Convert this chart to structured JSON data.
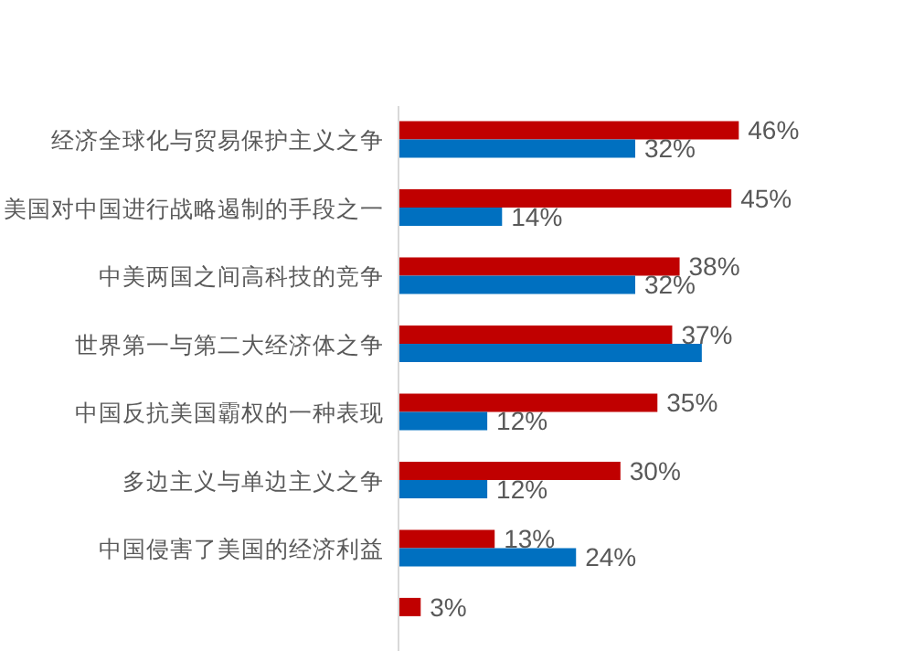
{
  "chart_data": {
    "type": "bar",
    "orientation": "horizontal",
    "categories": [
      "经济全球化与贸易保护主义之争",
      "美国对中国进行战略遏制的手段之一",
      "中美两国之间高科技的竞争",
      "世界第一与第二大经济体之争",
      "中国反抗美国霸权的一种表现",
      "多边主义与单边主义之争",
      "中国侵害了美国的经济利益",
      null
    ],
    "series": [
      {
        "color": "#c00000",
        "values": [
          46,
          45,
          38,
          37,
          35,
          30,
          13,
          3
        ],
        "value_labels": [
          "46%",
          "45%",
          "38%",
          "37%",
          "35%",
          "30%",
          "13%",
          "3%"
        ]
      },
      {
        "color": "#0070c0",
        "values": [
          32,
          14,
          32,
          41,
          12,
          12,
          24,
          null
        ],
        "value_labels": [
          "32%",
          "14%",
          "32%",
          null,
          "12%",
          "12%",
          "24%",
          null
        ]
      }
    ],
    "grid": false,
    "legend": false
  }
}
